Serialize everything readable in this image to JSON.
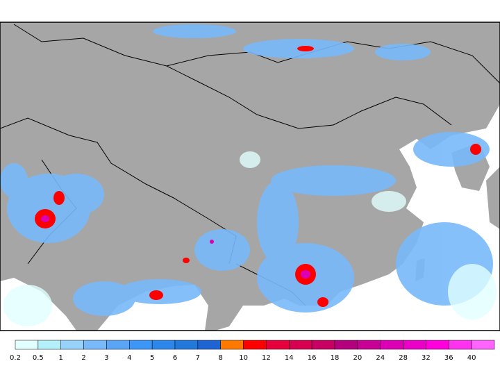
{
  "colorbar": {
    "levels": [
      0.2,
      0.5,
      1,
      2,
      3,
      4,
      5,
      6,
      7,
      8,
      10,
      12,
      14,
      16,
      18,
      20,
      24,
      28,
      32,
      36,
      40
    ],
    "colors": [
      "#e1ffff",
      "#b4f0fa",
      "#96d2fa",
      "#78b9fa",
      "#5aa5f5",
      "#3c96f5",
      "#2d87eb",
      "#2378dc",
      "#1e64d2",
      "#ff7800",
      "#ff0000",
      "#e6003c",
      "#d70050",
      "#c80064",
      "#b4007d",
      "#c80096",
      "#dc00b4",
      "#eb00c8",
      "#ff00dc",
      "#ff32f0",
      "#ff64ff"
    ]
  }
}
